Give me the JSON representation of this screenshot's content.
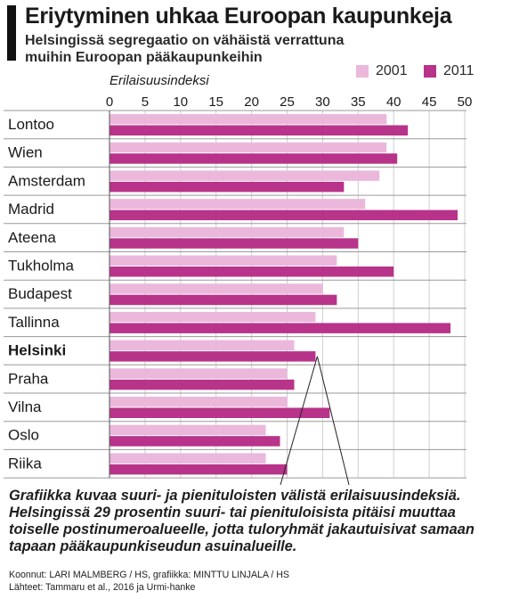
{
  "header": {
    "title": "Eriytyminen uhkaa Euroopan kaupunkeja",
    "subtitle": "Helsingissä segregaatio on vähäistä verrattuna muihin Euroopan pääkaupunkeihin"
  },
  "colors": {
    "series_2001": "#ebb8dc",
    "series_2011": "#b8338a",
    "text": "#1a1a1a",
    "grid": "#cfcfcf"
  },
  "chart_data": {
    "type": "bar",
    "orientation": "horizontal",
    "title": "Eriytyminen uhkaa Euroopan kaupunkeja",
    "subtitle": "Helsingissä segregaatio on vähäistä verrattuna muihin Euroopan pääkaupunkeihin",
    "xlabel": "Erilaisuusindeksi",
    "ylabel": "",
    "xlim": [
      0,
      50
    ],
    "xticks": [
      "0",
      "5",
      "10",
      "15",
      "20",
      "25",
      "30",
      "35",
      "40",
      "45",
      "50"
    ],
    "categories": [
      "Lontoo",
      "Wien",
      "Amsterdam",
      "Madrid",
      "Ateena",
      "Tukholma",
      "Budapest",
      "Tallinna",
      "Helsinki",
      "Praha",
      "Vilna",
      "Oslo",
      "Riika"
    ],
    "highlight": "Helsinki",
    "series": [
      {
        "name": "2001",
        "color": "#ebb8dc",
        "values": [
          39,
          39,
          38,
          36,
          33,
          32,
          30,
          29,
          26,
          25,
          25,
          22,
          22
        ]
      },
      {
        "name": "2011",
        "color": "#b8338a",
        "values": [
          42,
          40.5,
          33,
          49,
          35,
          40,
          32,
          48,
          29,
          26,
          31,
          24,
          25
        ]
      }
    ],
    "grid": true,
    "legend_position": "top-right",
    "annotation": "Grafiikka kuvaa suuri- ja pienituloisten välistä erilaisuusindeksiä. Helsingissä 29 prosentin suuri- tai pienituloisista pitäisi muuttaa toiselle postinumeroalueelle, jotta tuloryhmät jakautuisivat samaan tapaan pääkaupunkiseudun asuinalueille."
  },
  "footer": {
    "credits": "Koonnut: LARI MALMBERG / HS, grafiikka: MINTTU LINJALA / HS",
    "sources": "Lähteet: Tammaru et al., 2016 ja Urmi-hanke"
  }
}
